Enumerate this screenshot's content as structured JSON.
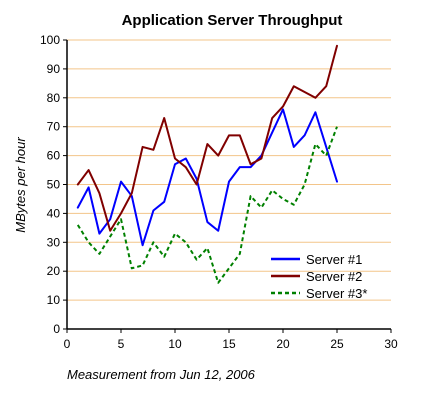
{
  "chart_data": {
    "type": "line",
    "title": "Application Server Throughput",
    "xlabel": "Measurement from Jun 12, 2006",
    "ylabel": "MBytes per hour",
    "xlim": [
      0,
      30
    ],
    "ylim": [
      0,
      100
    ],
    "xticks": [
      0,
      5,
      10,
      15,
      20,
      25,
      30
    ],
    "yticks": [
      0,
      10,
      20,
      30,
      40,
      50,
      60,
      70,
      80,
      90,
      100
    ],
    "grid": "horizontal",
    "legend_position": "bottom-right",
    "colors": {
      "grid": "#f3c58a",
      "axis": "#000000"
    },
    "x": [
      1,
      2,
      3,
      4,
      5,
      6,
      7,
      8,
      9,
      10,
      11,
      12,
      13,
      14,
      15,
      16,
      17,
      18,
      19,
      20,
      21,
      22,
      23,
      24,
      25
    ],
    "series": [
      {
        "name": "Server #1",
        "color": "#0000ff",
        "style": "solid",
        "values": [
          42,
          49,
          33,
          38,
          51,
          46,
          29,
          41,
          44,
          57,
          59,
          52,
          37,
          34,
          51,
          56,
          56,
          60,
          68,
          76,
          63,
          67,
          75,
          63,
          51
        ]
      },
      {
        "name": "Server #2",
        "color": "#800000",
        "style": "solid",
        "values": [
          50,
          55,
          47,
          34,
          40,
          47,
          63,
          62,
          73,
          59,
          56,
          50,
          64,
          60,
          67,
          67,
          57,
          59,
          73,
          77,
          84,
          82,
          80,
          84,
          98
        ]
      },
      {
        "name": "Server #3*",
        "color": "#008000",
        "style": "dashed",
        "values": [
          36,
          30,
          26,
          32,
          38,
          21,
          22,
          30,
          25,
          33,
          30,
          24,
          28,
          16,
          21,
          26,
          46,
          42,
          48,
          45,
          43,
          50,
          64,
          60,
          70
        ]
      }
    ]
  }
}
